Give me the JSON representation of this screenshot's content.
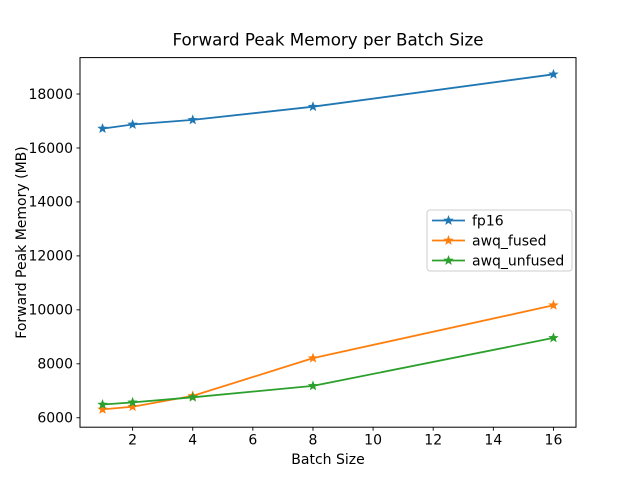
{
  "chart_data": {
    "type": "line",
    "title": "Forward Peak Memory per Batch Size",
    "xlabel": "Batch Size",
    "ylabel": "Forward Peak Memory (MB)",
    "x": [
      1,
      2,
      4,
      8,
      16
    ],
    "series": [
      {
        "name": "fp16",
        "color": "#1f77b4",
        "values": [
          16720,
          16870,
          17040,
          17530,
          18730
        ]
      },
      {
        "name": "awq_fused",
        "color": "#ff7f0e",
        "values": [
          6310,
          6410,
          6810,
          8210,
          10170
        ]
      },
      {
        "name": "awq_unfused",
        "color": "#2ca02c",
        "values": [
          6490,
          6570,
          6760,
          7180,
          8960
        ]
      }
    ],
    "xticks": [
      2,
      4,
      6,
      8,
      10,
      12,
      14,
      16
    ],
    "yticks": [
      6000,
      8000,
      10000,
      12000,
      14000,
      16000,
      18000
    ],
    "xlim": [
      0.25,
      16.75
    ],
    "ylim": [
      5650,
      19350
    ],
    "marker": "star",
    "grid": false,
    "legend": {
      "position": "center-right",
      "border_color": "#cccccc",
      "background": "#ffffff"
    },
    "background": "#ffffff",
    "axis_color": "#000000"
  }
}
